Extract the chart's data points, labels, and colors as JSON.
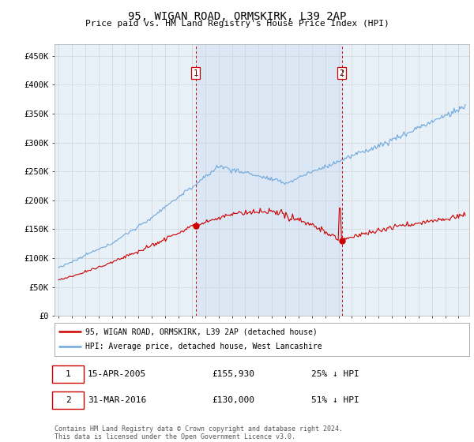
{
  "title": "95, WIGAN ROAD, ORMSKIRK, L39 2AP",
  "subtitle": "Price paid vs. HM Land Registry's House Price Index (HPI)",
  "ylabel_ticks": [
    "£0",
    "£50K",
    "£100K",
    "£150K",
    "£200K",
    "£250K",
    "£300K",
    "£350K",
    "£400K",
    "£450K"
  ],
  "ytick_values": [
    0,
    50000,
    100000,
    150000,
    200000,
    250000,
    300000,
    350000,
    400000,
    450000
  ],
  "ylim": [
    0,
    470000
  ],
  "xlim_start": 1994.7,
  "xlim_end": 2025.8,
  "hpi_color": "#6fa8dc",
  "price_color": "#cc0000",
  "vline_color": "#cc0000",
  "shade_color": "#ddeeff",
  "marker1_year": 2005.28,
  "marker2_year": 2016.24,
  "marker1_price": 155930,
  "marker2_price": 130000,
  "legend_entry1": "95, WIGAN ROAD, ORMSKIRK, L39 2AP (detached house)",
  "legend_entry2": "HPI: Average price, detached house, West Lancashire",
  "footer": "Contains HM Land Registry data © Crown copyright and database right 2024.\nThis data is licensed under the Open Government Licence v3.0.",
  "background_color": "#e8f0f8",
  "plot_bg": "#ffffff",
  "grid_color": "#cccccc"
}
